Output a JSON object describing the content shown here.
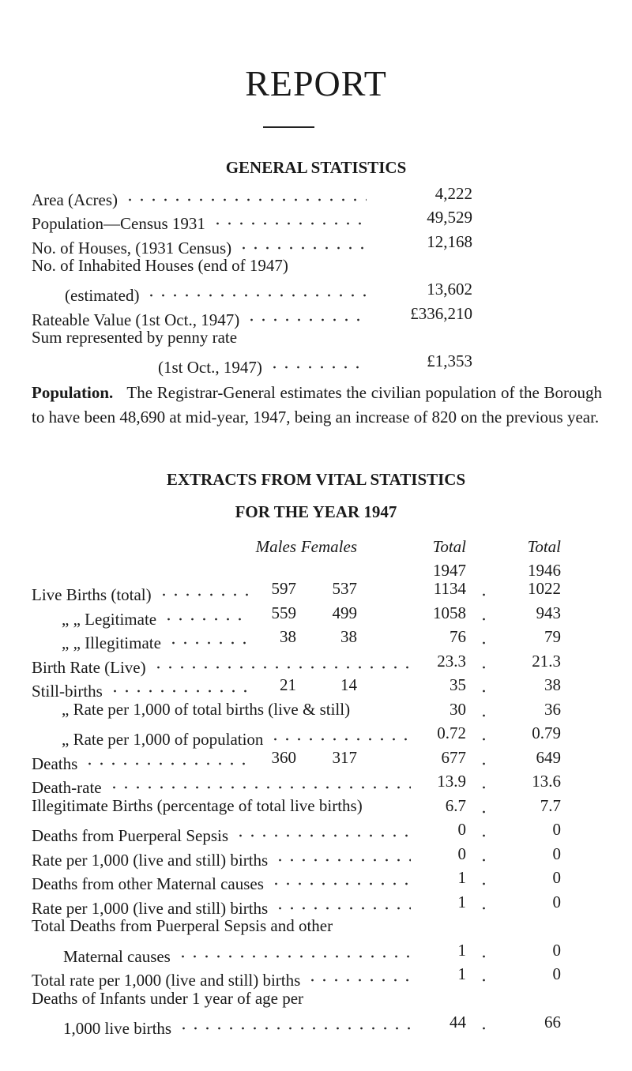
{
  "header": {
    "title": "REPORT"
  },
  "general_statistics": {
    "heading": "GENERAL STATISTICS",
    "rows": [
      {
        "label": [
          "Area (Acres)"
        ],
        "value": "4,222"
      },
      {
        "label": [
          "Population—Census 1931"
        ],
        "value": "49,529"
      },
      {
        "label": [
          "No. of Houses, (1931 Census)"
        ],
        "value": "12,168"
      },
      {
        "label": [
          "No. of Inhabited Houses (end of 1947)",
          "(estimated)"
        ],
        "value": "13,602"
      },
      {
        "label": [
          "Rateable Value (1st Oct., 1947)"
        ],
        "value": "£336,210"
      },
      {
        "label": [
          "Sum represented by penny rate",
          "(1st Oct., 1947)"
        ],
        "value": "£1,353"
      }
    ]
  },
  "population_note": {
    "lead": "Population.",
    "text": "The Registrar-General estimates the civilian population of the Borough to have been 48,690 at mid-year, 1947, being an increase of 820 on the previous year."
  },
  "vital_statistics": {
    "heading": [
      "EXTRACTS FROM VITAL STATISTICS",
      "FOR THE YEAR 1947"
    ],
    "columns": {
      "males": [
        "Males"
      ],
      "females": [
        "Females"
      ],
      "total_1947": [
        "Total",
        "1947"
      ],
      "total_1946": [
        "Total",
        "1946"
      ]
    },
    "rows": [
      {
        "label": [
          "Live Births (total)"
        ],
        "males": "597",
        "females": "537",
        "total_1947": "1134",
        "total_1946": "1022"
      },
      {
        "label": [
          "„ „ Legitimate"
        ],
        "males": "559",
        "females": "499",
        "total_1947": "1058",
        "total_1946": "943"
      },
      {
        "label": [
          "„ „ Illegitimate"
        ],
        "males": "38",
        "females": "38",
        "total_1947": "76",
        "total_1946": "79"
      },
      {
        "label": [
          "Birth Rate (Live)"
        ],
        "total_1947": "23.3",
        "total_1946": "21.3"
      },
      {
        "label": [
          "Still-births"
        ],
        "males": "21",
        "females": "14",
        "total_1947": "35",
        "total_1946": "38"
      },
      {
        "label": [
          "„ Rate per 1,000 of total births (live & still)"
        ],
        "total_1947": "30",
        "total_1946": "36"
      },
      {
        "label": [
          "„ Rate per 1,000 of population"
        ],
        "total_1947": "0.72",
        "total_1946": "0.79"
      },
      {
        "label": [
          "Deaths"
        ],
        "males": "360",
        "females": "317",
        "total_1947": "677",
        "total_1946": "649"
      },
      {
        "label": [
          "Death-rate"
        ],
        "total_1947": "13.9",
        "total_1946": "13.6"
      },
      {
        "label": [
          "Illegitimate Births (percentage of total live births)"
        ],
        "total_1947": "6.7",
        "total_1946": "7.7"
      },
      {
        "label": [
          "Deaths from Puerperal Sepsis"
        ],
        "total_1947": "0",
        "total_1946": "0"
      },
      {
        "label": [
          "Rate per 1,000 (live and still) births"
        ],
        "total_1947": "0",
        "total_1946": "0"
      },
      {
        "label": [
          "Deaths from other Maternal causes"
        ],
        "total_1947": "1",
        "total_1946": "0"
      },
      {
        "label": [
          "Rate per 1,000 (live and still) births"
        ],
        "total_1947": "1",
        "total_1946": "0"
      },
      {
        "label": [
          "Total Deaths from Puerperal Sepsis and other",
          "Maternal causes"
        ],
        "total_1947": "1",
        "total_1946": "0"
      },
      {
        "label": [
          "Total rate per 1,000 (live and still) births"
        ],
        "total_1947": "1",
        "total_1946": "0"
      },
      {
        "label": [
          "Deaths of Infants under 1 year of age per",
          "1,000 live births"
        ],
        "total_1947": "44",
        "total_1946": "66"
      }
    ]
  }
}
